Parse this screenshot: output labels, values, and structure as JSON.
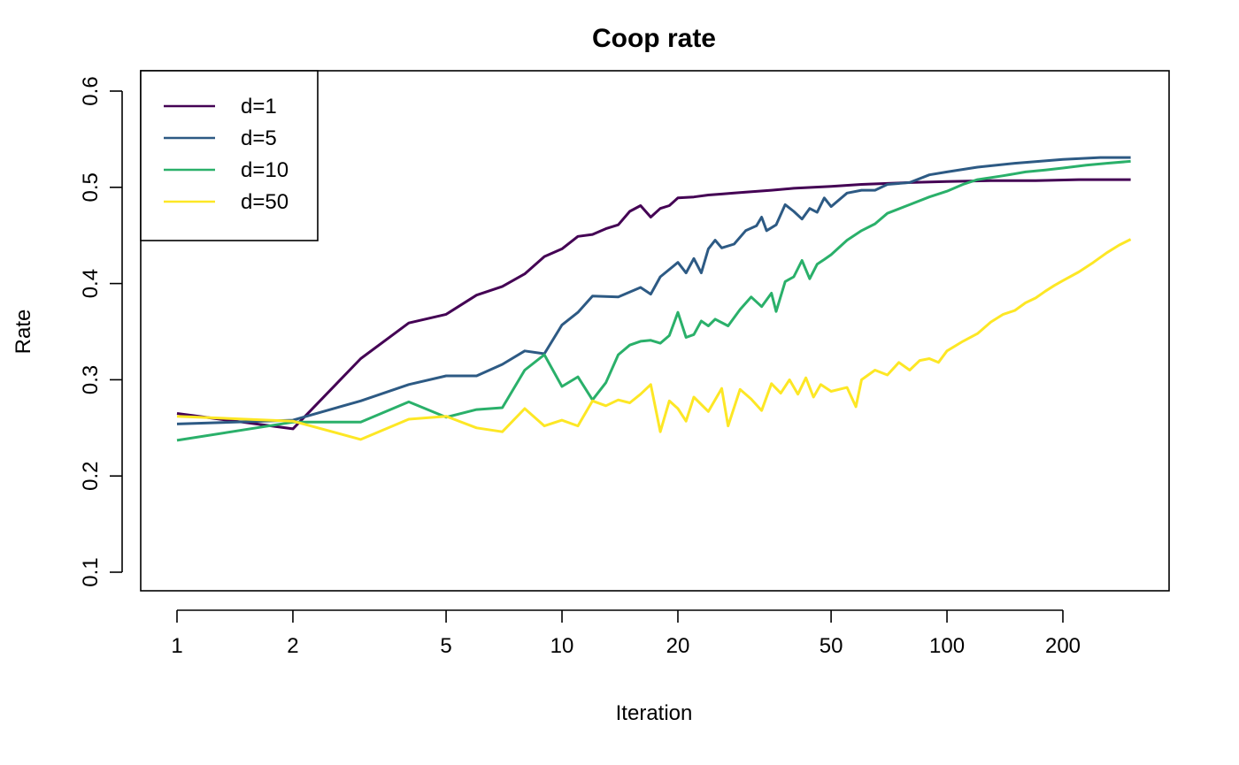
{
  "chart_data": {
    "type": "line",
    "title": "Coop rate",
    "xlabel": "Iteration",
    "ylabel": "Rate",
    "x_scale": "log",
    "xlim": [
      1,
      300
    ],
    "ylim": [
      0.1,
      0.6
    ],
    "x_ticks": [
      1,
      2,
      5,
      10,
      20,
      50,
      100,
      200
    ],
    "x_tick_labels": [
      "1",
      "2",
      "5",
      "10",
      "20",
      "50",
      "100",
      "200"
    ],
    "y_ticks": [
      0.1,
      0.2,
      0.3,
      0.4,
      0.5,
      0.6
    ],
    "y_tick_labels": [
      "0.1",
      "0.2",
      "0.3",
      "0.4",
      "0.5",
      "0.6"
    ],
    "grid": false,
    "legend_position": "top-left",
    "series": [
      {
        "name": "d=1",
        "color": "#440154",
        "points": [
          [
            1,
            0.265
          ],
          [
            2,
            0.249
          ],
          [
            3,
            0.322
          ],
          [
            4,
            0.359
          ],
          [
            5,
            0.368
          ],
          [
            6,
            0.388
          ],
          [
            7,
            0.397
          ],
          [
            8,
            0.41
          ],
          [
            9,
            0.428
          ],
          [
            10,
            0.436
          ],
          [
            11,
            0.449
          ],
          [
            12,
            0.451
          ],
          [
            13,
            0.457
          ],
          [
            14,
            0.461
          ],
          [
            15,
            0.475
          ],
          [
            16,
            0.481
          ],
          [
            17,
            0.469
          ],
          [
            18,
            0.478
          ],
          [
            19,
            0.481
          ],
          [
            20,
            0.489
          ],
          [
            22,
            0.49
          ],
          [
            24,
            0.492
          ],
          [
            26,
            0.493
          ],
          [
            28,
            0.494
          ],
          [
            30,
            0.495
          ],
          [
            35,
            0.497
          ],
          [
            40,
            0.499
          ],
          [
            45,
            0.5
          ],
          [
            50,
            0.501
          ],
          [
            60,
            0.503
          ],
          [
            70,
            0.504
          ],
          [
            80,
            0.505
          ],
          [
            100,
            0.506
          ],
          [
            130,
            0.507
          ],
          [
            170,
            0.507
          ],
          [
            220,
            0.508
          ],
          [
            300,
            0.508
          ]
        ]
      },
      {
        "name": "d=5",
        "color": "#2d5a84",
        "points": [
          [
            1,
            0.254
          ],
          [
            2,
            0.258
          ],
          [
            3,
            0.278
          ],
          [
            4,
            0.295
          ],
          [
            5,
            0.304
          ],
          [
            6,
            0.304
          ],
          [
            7,
            0.316
          ],
          [
            8,
            0.33
          ],
          [
            9,
            0.327
          ],
          [
            10,
            0.357
          ],
          [
            11,
            0.37
          ],
          [
            12,
            0.387
          ],
          [
            14,
            0.386
          ],
          [
            16,
            0.396
          ],
          [
            17,
            0.389
          ],
          [
            18,
            0.407
          ],
          [
            20,
            0.422
          ],
          [
            21,
            0.411
          ],
          [
            22,
            0.426
          ],
          [
            23,
            0.411
          ],
          [
            24,
            0.436
          ],
          [
            25,
            0.445
          ],
          [
            26,
            0.437
          ],
          [
            28,
            0.441
          ],
          [
            30,
            0.455
          ],
          [
            32,
            0.46
          ],
          [
            33,
            0.469
          ],
          [
            34,
            0.455
          ],
          [
            36,
            0.461
          ],
          [
            38,
            0.482
          ],
          [
            40,
            0.475
          ],
          [
            42,
            0.467
          ],
          [
            44,
            0.478
          ],
          [
            46,
            0.474
          ],
          [
            48,
            0.489
          ],
          [
            50,
            0.48
          ],
          [
            55,
            0.494
          ],
          [
            60,
            0.497
          ],
          [
            65,
            0.497
          ],
          [
            70,
            0.503
          ],
          [
            80,
            0.505
          ],
          [
            90,
            0.513
          ],
          [
            100,
            0.516
          ],
          [
            120,
            0.521
          ],
          [
            150,
            0.525
          ],
          [
            200,
            0.529
          ],
          [
            250,
            0.531
          ],
          [
            300,
            0.531
          ]
        ]
      },
      {
        "name": "d=10",
        "color": "#2ab06a",
        "points": [
          [
            1,
            0.237
          ],
          [
            2,
            0.256
          ],
          [
            3,
            0.256
          ],
          [
            4,
            0.277
          ],
          [
            5,
            0.261
          ],
          [
            6,
            0.269
          ],
          [
            7,
            0.271
          ],
          [
            8,
            0.31
          ],
          [
            9,
            0.326
          ],
          [
            10,
            0.293
          ],
          [
            11,
            0.303
          ],
          [
            12,
            0.279
          ],
          [
            13,
            0.297
          ],
          [
            14,
            0.326
          ],
          [
            15,
            0.336
          ],
          [
            16,
            0.34
          ],
          [
            17,
            0.341
          ],
          [
            18,
            0.338
          ],
          [
            19,
            0.346
          ],
          [
            20,
            0.37
          ],
          [
            21,
            0.344
          ],
          [
            22,
            0.347
          ],
          [
            23,
            0.361
          ],
          [
            24,
            0.356
          ],
          [
            25,
            0.363
          ],
          [
            27,
            0.356
          ],
          [
            29,
            0.373
          ],
          [
            31,
            0.386
          ],
          [
            33,
            0.376
          ],
          [
            35,
            0.39
          ],
          [
            36,
            0.371
          ],
          [
            38,
            0.402
          ],
          [
            40,
            0.407
          ],
          [
            42,
            0.424
          ],
          [
            44,
            0.405
          ],
          [
            46,
            0.42
          ],
          [
            48,
            0.425
          ],
          [
            50,
            0.43
          ],
          [
            55,
            0.445
          ],
          [
            60,
            0.455
          ],
          [
            65,
            0.462
          ],
          [
            70,
            0.473
          ],
          [
            80,
            0.482
          ],
          [
            90,
            0.49
          ],
          [
            100,
            0.496
          ],
          [
            110,
            0.503
          ],
          [
            120,
            0.508
          ],
          [
            140,
            0.512
          ],
          [
            160,
            0.516
          ],
          [
            180,
            0.518
          ],
          [
            200,
            0.52
          ],
          [
            230,
            0.523
          ],
          [
            260,
            0.525
          ],
          [
            300,
            0.527
          ]
        ]
      },
      {
        "name": "d=50",
        "color": "#fde725",
        "points": [
          [
            1,
            0.262
          ],
          [
            2,
            0.257
          ],
          [
            3,
            0.238
          ],
          [
            4,
            0.259
          ],
          [
            5,
            0.262
          ],
          [
            6,
            0.25
          ],
          [
            7,
            0.246
          ],
          [
            8,
            0.27
          ],
          [
            9,
            0.252
          ],
          [
            10,
            0.258
          ],
          [
            11,
            0.252
          ],
          [
            12,
            0.278
          ],
          [
            13,
            0.273
          ],
          [
            14,
            0.279
          ],
          [
            15,
            0.276
          ],
          [
            16,
            0.285
          ],
          [
            17,
            0.295
          ],
          [
            18,
            0.246
          ],
          [
            19,
            0.278
          ],
          [
            20,
            0.27
          ],
          [
            21,
            0.257
          ],
          [
            22,
            0.282
          ],
          [
            24,
            0.267
          ],
          [
            26,
            0.291
          ],
          [
            27,
            0.252
          ],
          [
            29,
            0.29
          ],
          [
            31,
            0.28
          ],
          [
            33,
            0.268
          ],
          [
            35,
            0.296
          ],
          [
            37,
            0.286
          ],
          [
            39,
            0.3
          ],
          [
            41,
            0.285
          ],
          [
            43,
            0.302
          ],
          [
            45,
            0.282
          ],
          [
            47,
            0.295
          ],
          [
            50,
            0.288
          ],
          [
            55,
            0.292
          ],
          [
            58,
            0.272
          ],
          [
            60,
            0.3
          ],
          [
            65,
            0.31
          ],
          [
            70,
            0.305
          ],
          [
            75,
            0.318
          ],
          [
            80,
            0.31
          ],
          [
            85,
            0.32
          ],
          [
            90,
            0.322
          ],
          [
            95,
            0.318
          ],
          [
            100,
            0.33
          ],
          [
            110,
            0.34
          ],
          [
            120,
            0.348
          ],
          [
            130,
            0.36
          ],
          [
            140,
            0.368
          ],
          [
            150,
            0.372
          ],
          [
            160,
            0.38
          ],
          [
            170,
            0.385
          ],
          [
            180,
            0.392
          ],
          [
            190,
            0.398
          ],
          [
            200,
            0.403
          ],
          [
            220,
            0.412
          ],
          [
            240,
            0.422
          ],
          [
            260,
            0.432
          ],
          [
            280,
            0.44
          ],
          [
            300,
            0.446
          ]
        ]
      }
    ]
  }
}
